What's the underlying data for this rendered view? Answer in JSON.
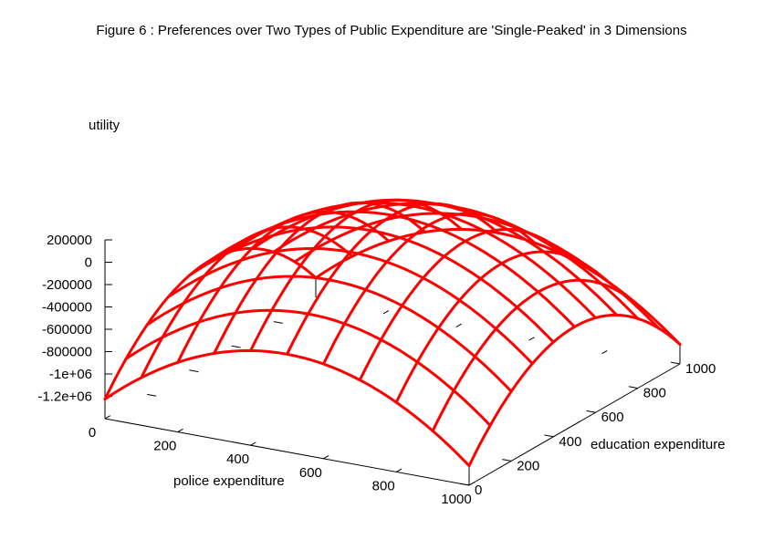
{
  "chart_data": {
    "type": "surface3d",
    "title": "Figure 6 : Preferences over Two Types of Public Expenditure are 'Single-Peaked' in 3 Dimensions",
    "xlabel": "police expenditure",
    "ylabel": "education expenditure",
    "zlabel": "utility",
    "xlim": [
      0,
      1000
    ],
    "ylim": [
      0,
      1000
    ],
    "zlim": [
      -1400000,
      200000
    ],
    "x_ticks": [
      0,
      200,
      400,
      600,
      800,
      1000
    ],
    "x_tick_labels": [
      "0",
      "200",
      "400",
      "600",
      "800",
      "1000"
    ],
    "y_ticks": [
      0,
      200,
      400,
      600,
      800,
      1000
    ],
    "y_tick_labels": [
      "0",
      "200",
      "400",
      "600",
      "800",
      "1000"
    ],
    "z_ticks": [
      200000,
      0,
      -200000,
      -400000,
      -600000,
      -800000,
      -1000000,
      -1200000
    ],
    "z_tick_labels": [
      "200000",
      "0",
      "-200000",
      "-400000",
      "-600000",
      "-800000",
      "-1e+06",
      "-1.2e+06"
    ],
    "grid_x": [
      0,
      100,
      200,
      300,
      400,
      500,
      600,
      700,
      800,
      900,
      1000
    ],
    "grid_y": [
      0,
      100,
      200,
      300,
      400,
      500,
      600,
      700,
      800,
      900,
      1000
    ],
    "surface": {
      "form": "z = a - b*(x - x0)^2 - b*(y - y0)^2",
      "a": 175000,
      "b": 2.8,
      "x0": 500,
      "y0": 500
    },
    "color": "#ff0000",
    "grid": false,
    "legend": "none"
  }
}
